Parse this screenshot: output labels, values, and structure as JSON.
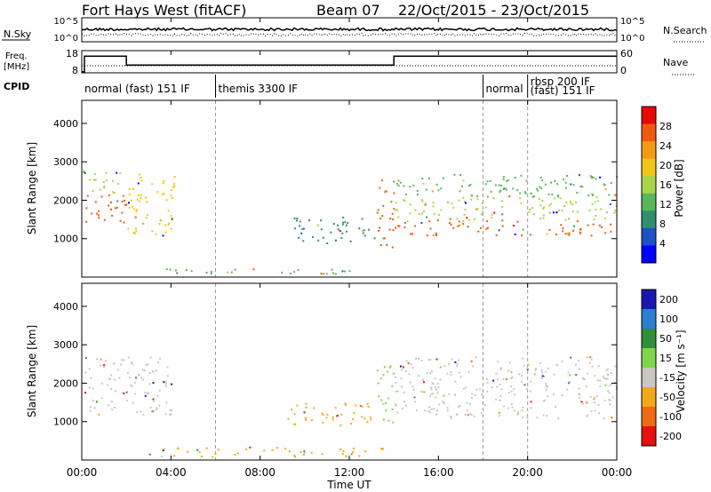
{
  "header": {
    "station": "Fort Hays West (fitACF)",
    "beam": "Beam 07",
    "date_range": "22/Oct/2015 - 23/Oct/2015"
  },
  "nsky_panel": {
    "label": "N.Sky",
    "y_ticks": [
      "10^5",
      "10^0"
    ],
    "right_label": "N.Search",
    "right_ticks": [
      "10^5",
      "10^0"
    ]
  },
  "freq_panel": {
    "label_line1": "Freq.",
    "label_line2": "[MHz]",
    "y_ticks": [
      18,
      8
    ],
    "right_label": "Nave",
    "right_ticks": [
      60,
      0
    ],
    "freq_steps": [
      {
        "from_hour": 0.0,
        "to_hour": 0.12,
        "value": 8.5
      },
      {
        "from_hour": 0.12,
        "to_hour": 2.0,
        "value": 15.5
      },
      {
        "from_hour": 2.0,
        "to_hour": 14.0,
        "value": 11.5
      },
      {
        "from_hour": 14.0,
        "to_hour": 24.0,
        "value": 15.5
      }
    ]
  },
  "cpid": {
    "label": "CPID",
    "modes": [
      {
        "text": "normal (fast) 151 IF",
        "start_hour": 0.0
      },
      {
        "text": "themis 3300 IF",
        "start_hour": 6.0
      },
      {
        "text": "normal",
        "start_hour": 18.0
      },
      {
        "text": "rbsp 200 IF",
        "start_hour": 20.0
      },
      {
        "text": "(fast) 151 IF",
        "start_hour": 20.0
      }
    ]
  },
  "chart_data": [
    {
      "type": "heatmap",
      "name": "power",
      "ylabel": "Slant Range [km]",
      "xlim_hours": [
        0,
        24
      ],
      "ylim_km": [
        0,
        4600
      ],
      "y_ticks": [
        1000,
        2000,
        3000,
        4000
      ],
      "colorbar": {
        "label": "Power [dB]",
        "ticks": [
          4,
          8,
          12,
          16,
          20,
          24,
          28
        ],
        "range": [
          0,
          32
        ],
        "colors": [
          "#0000ff",
          "#1e50c8",
          "#2f8f6e",
          "#58b85a",
          "#a8d44a",
          "#f2c618",
          "#f39a14",
          "#ef5a10",
          "#e80808"
        ]
      },
      "regions": [
        {
          "t0": 0.0,
          "t1": 2.0,
          "r0": 1400,
          "r1": 2200,
          "value": 28
        },
        {
          "t0": 0.0,
          "t1": 2.0,
          "r0": 2200,
          "r1": 2800,
          "value": 14
        },
        {
          "t0": 2.0,
          "t1": 4.2,
          "r0": 1100,
          "r1": 2700,
          "value": 20
        },
        {
          "t0": 9.5,
          "t1": 13.2,
          "r0": 900,
          "r1": 1600,
          "value": 6
        },
        {
          "t0": 13.2,
          "t1": 14.0,
          "r0": 700,
          "r1": 2600,
          "value": 26
        },
        {
          "t0": 14.0,
          "t1": 24.0,
          "r0": 1100,
          "r1": 1500,
          "value": 28
        },
        {
          "t0": 14.0,
          "t1": 24.0,
          "r0": 1500,
          "r1": 2100,
          "value": 16
        },
        {
          "t0": 14.0,
          "t1": 24.0,
          "r0": 2100,
          "r1": 2700,
          "value": 10
        },
        {
          "t0": 3.0,
          "t1": 13.5,
          "r0": 100,
          "r1": 250,
          "value": 10
        }
      ]
    },
    {
      "type": "heatmap",
      "name": "velocity",
      "ylabel": "Slant Range [km]",
      "xlabel": "Time UT",
      "x_ticks": [
        "00:00",
        "04:00",
        "08:00",
        "12:00",
        "16:00",
        "20:00",
        "00:00"
      ],
      "xlim_hours": [
        0,
        24
      ],
      "ylim_km": [
        0,
        4600
      ],
      "y_ticks": [
        1000,
        2000,
        3000,
        4000
      ],
      "colorbar": {
        "label": "Velocity [m s⁻¹]",
        "ticks": [
          "200",
          "100",
          "50",
          "15",
          "-15",
          "-50",
          "-100",
          "-200"
        ],
        "colors": [
          "#1818b0",
          "#2a7fd0",
          "#2f8f3a",
          "#7ed64a",
          "#c8c8c0",
          "#f3a81a",
          "#ef6a14",
          "#e81010"
        ]
      },
      "regions": [
        {
          "t0": 0.0,
          "t1": 4.0,
          "r0": 1200,
          "r1": 2700,
          "value": "-15..15"
        },
        {
          "t0": 9.0,
          "t1": 13.0,
          "r0": 900,
          "r1": 1500,
          "value": "-50"
        },
        {
          "t0": 13.2,
          "t1": 14.0,
          "r0": 900,
          "r1": 2500,
          "value": "50"
        },
        {
          "t0": 14.0,
          "t1": 24.0,
          "r0": 1100,
          "r1": 2700,
          "value": "-15..15"
        },
        {
          "t0": 3.0,
          "t1": 13.5,
          "r0": 100,
          "r1": 350,
          "value": "-50"
        }
      ]
    }
  ]
}
